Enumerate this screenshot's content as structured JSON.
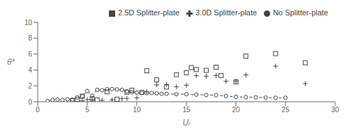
{
  "chart_data": {
    "type": "scatter",
    "title": "",
    "xlabel": "Uᵣ",
    "ylabel": "θ*",
    "xlim": [
      0,
      30
    ],
    "ylim": [
      0,
      10
    ],
    "xticks": [
      0,
      5,
      10,
      15,
      20,
      25,
      30
    ],
    "yticks": [
      0,
      2,
      4,
      6,
      8,
      10
    ],
    "legend": "upper right",
    "series": [
      {
        "name": "No Splitter-plate",
        "type": "line",
        "marker": "circle",
        "line_style": "dashed",
        "color": "#444444",
        "x": [
          1.0,
          1.5,
          2.0,
          2.5,
          3.0,
          3.5,
          4.0,
          4.5,
          5.0,
          5.5,
          6.0,
          6.5,
          7.0,
          7.5,
          8.0,
          8.5,
          9.0,
          9.5,
          10.0,
          10.5,
          11.0,
          11.5,
          12.0,
          12.5,
          13.0,
          14.0,
          15.0,
          16.0,
          17.0,
          18.0,
          19.0,
          20.0,
          21.0,
          22.0,
          23.0,
          24.0,
          25.0
        ],
        "values": [
          0.08,
          0.22,
          0.28,
          0.22,
          0.3,
          0.28,
          0.55,
          0.7,
          1.35,
          0.75,
          1.5,
          1.45,
          1.58,
          1.6,
          1.55,
          1.5,
          1.3,
          1.2,
          1.15,
          1.1,
          1.1,
          1.1,
          1.05,
          1.0,
          1.0,
          0.95,
          0.95,
          0.9,
          0.85,
          0.82,
          0.72,
          0.62,
          0.58,
          0.55,
          0.52,
          0.5,
          0.5
        ]
      },
      {
        "name": "2.5D Splitter-plate",
        "type": "scatter",
        "marker": "square",
        "color": "#444444",
        "x": [
          3.5,
          4.0,
          4.5,
          5.5,
          6.0,
          7.0,
          8.0,
          9.0,
          9.5,
          10.5,
          11.0,
          12.0,
          13.0,
          14.0,
          15.0,
          15.5,
          16.0,
          17.0,
          18.0,
          18.5,
          20.0,
          21.0,
          24.0,
          27.0
        ],
        "values": [
          0.12,
          0.28,
          0.7,
          0.38,
          0.22,
          1.25,
          0.32,
          1.2,
          1.45,
          1.18,
          3.9,
          2.75,
          1.85,
          3.4,
          3.65,
          4.3,
          4.05,
          3.95,
          4.35,
          3.3,
          2.5,
          5.75,
          6.05,
          4.9
        ]
      },
      {
        "name": "3.0D Splitter-plate",
        "type": "scatter",
        "marker": "cross",
        "color": "#444444",
        "x": [
          4.5,
          5.0,
          5.5,
          6.5,
          7.5,
          8.5,
          9.0,
          10.0,
          11.0,
          12.0,
          13.0,
          14.0,
          15.0,
          16.0,
          17.0,
          18.0,
          19.0,
          20.0,
          21.0,
          24.0,
          27.0
        ],
        "values": [
          0.12,
          0.28,
          0.28,
          0.18,
          0.22,
          0.38,
          0.42,
          0.48,
          1.28,
          2.12,
          2.18,
          1.88,
          2.08,
          3.28,
          3.22,
          3.28,
          2.58,
          2.58,
          3.38,
          4.48,
          2.28
        ]
      }
    ]
  }
}
